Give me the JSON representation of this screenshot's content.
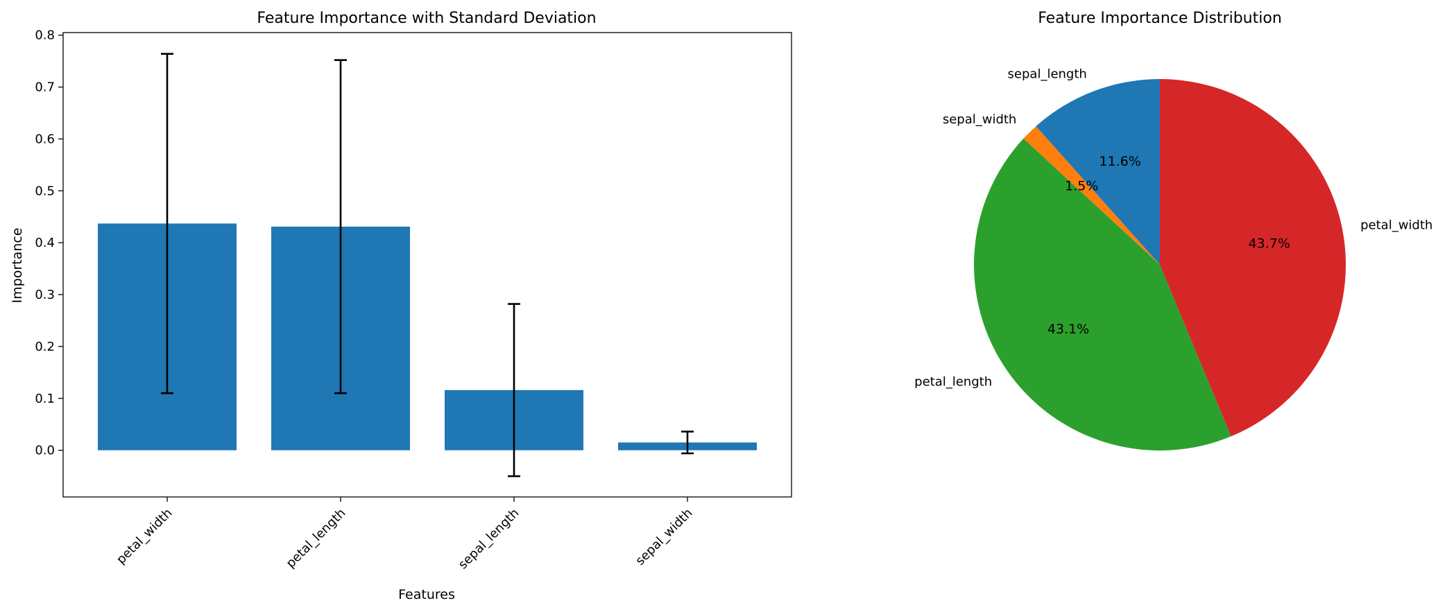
{
  "chart_data": [
    {
      "type": "bar",
      "title": "Feature Importance with Standard Deviation",
      "xlabel": "Features",
      "ylabel": "Importance",
      "categories": [
        "petal_width",
        "petal_length",
        "sepal_length",
        "sepal_width"
      ],
      "values": [
        0.437,
        0.431,
        0.116,
        0.015
      ],
      "errors": [
        0.327,
        0.321,
        0.166,
        0.021
      ],
      "ylim": [
        -0.09,
        0.805
      ],
      "yticks": [
        "0.0",
        "0.1",
        "0.2",
        "0.3",
        "0.4",
        "0.5",
        "0.6",
        "0.7",
        "0.8"
      ],
      "color": "#1f77b4",
      "error_color": "#000000",
      "grid": false
    },
    {
      "type": "pie",
      "title": "Feature Importance Distribution",
      "labels": [
        "sepal_length",
        "sepal_width",
        "petal_length",
        "petal_width"
      ],
      "values": [
        11.6,
        1.5,
        43.1,
        43.7
      ],
      "percent_labels": [
        "11.6%",
        "1.5%",
        "43.1%",
        "43.7%"
      ],
      "colors": [
        "#1f77b4",
        "#ff7f0e",
        "#2ca02c",
        "#d62728"
      ],
      "start_angle": 90,
      "direction": "counterclockwise"
    }
  ]
}
